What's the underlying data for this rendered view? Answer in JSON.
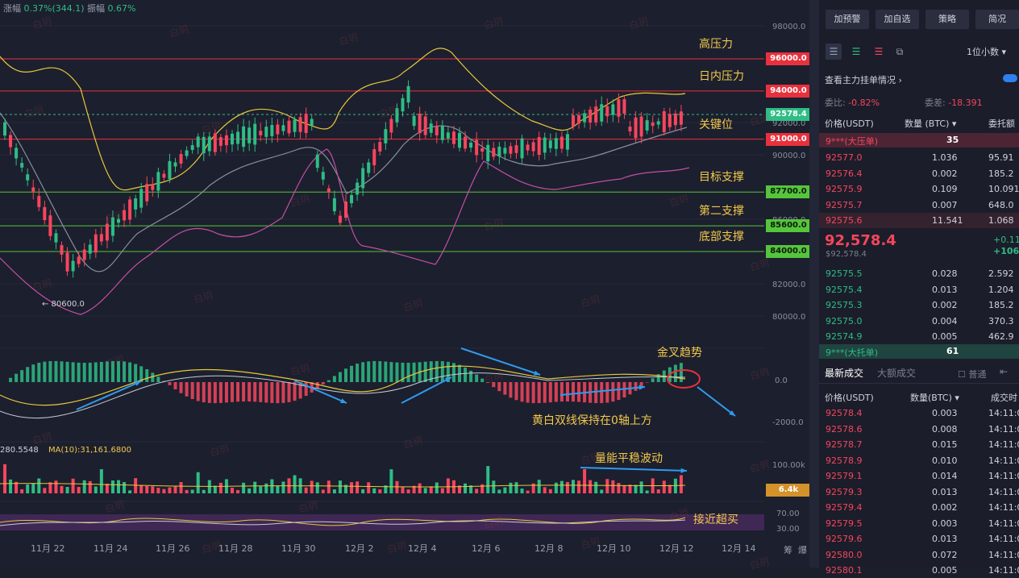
{
  "top_stats": {
    "change_label": "涨幅",
    "change_value": "0.37%(344.1)",
    "amp_label": "振幅",
    "amp_value": "0.67%"
  },
  "price_axis": [
    "98000.0",
    "92000.0",
    "90000.0",
    "86000.0",
    "82000.0",
    "80000.0"
  ],
  "levels": [
    {
      "price": 96000,
      "label": "96000.0",
      "note": "高压力",
      "color": "#e8313d"
    },
    {
      "price": 94000,
      "label": "94000.0",
      "note": "日内压力",
      "color": "#e8313d"
    },
    {
      "price": 91000,
      "label": "91000.0",
      "note": "关键位",
      "color": "#e8313d"
    },
    {
      "price": 87700,
      "label": "87700.0",
      "note": "目标支撑",
      "color": "#55c53b"
    },
    {
      "price": 85600,
      "label": "85600.0",
      "note": "第二支撑",
      "color": "#55c53b"
    },
    {
      "price": 84000,
      "label": "84000.0",
      "note": "底部支撑",
      "color": "#55c53b"
    }
  ],
  "current_price_tag": "92578.4",
  "low_marker": "← 80600.0",
  "macd": {
    "zero_label": "0.0",
    "neg_label": "-2000.0",
    "annot_golden": "金叉趋势",
    "annot_lines": "黄白双线保持在0轴上方"
  },
  "volume": {
    "ma_label": "MA(10):31,161.6800",
    "prefix_label": "280.5548",
    "axis_label": "100.00k",
    "current_tag": "6.4k",
    "annot": "量能平稳波动"
  },
  "rsi": {
    "axis_top": "70.00",
    "axis_bottom": "30.00",
    "annot": "接近超买"
  },
  "dates": [
    "11月 22",
    "11月 24",
    "11月 26",
    "11月 28",
    "11月 30",
    "12月 2",
    "12月 4",
    "12月 6",
    "12月 8",
    "12月 10",
    "12月 12",
    "12月 14"
  ],
  "bottom_right_labels": [
    "筹",
    "爆"
  ],
  "watermark": "白玥",
  "panel": {
    "buttons": [
      "加预警",
      "加自选",
      "策略",
      "简况"
    ],
    "decimals": "1位小数",
    "view_orders": "查看主力挂单情况",
    "ratio_label": "委比",
    "ratio_value": "-0.82%",
    "diff_label": "委差",
    "diff_value": "-18.391",
    "headers": {
      "price": "价格(USDT)",
      "qty": "数量 (BTC)",
      "total": "委托额"
    },
    "big_sell_banner": {
      "label": "9***(大压单)",
      "qty": "35"
    },
    "asks": [
      {
        "price": "92577.0",
        "qty": "1.036",
        "total": "95.91"
      },
      {
        "price": "92576.4",
        "qty": "0.002",
        "total": "185.2"
      },
      {
        "price": "92575.9",
        "qty": "0.109",
        "total": "10.091"
      },
      {
        "price": "92575.7",
        "qty": "0.007",
        "total": "648.0"
      },
      {
        "price": "92575.6",
        "qty": "11.541",
        "total": "1.068"
      }
    ],
    "mid_price": "92,578.4",
    "mid_usd": "$92,578.4",
    "mid_change": "+0.11",
    "mid_change2": "+106",
    "bids": [
      {
        "price": "92575.5",
        "qty": "0.028",
        "total": "2.592"
      },
      {
        "price": "92575.4",
        "qty": "0.013",
        "total": "1.204"
      },
      {
        "price": "92575.3",
        "qty": "0.002",
        "total": "185.2"
      },
      {
        "price": "92575.0",
        "qty": "0.004",
        "total": "370.3"
      },
      {
        "price": "92574.9",
        "qty": "0.005",
        "total": "462.9"
      }
    ],
    "big_buy_banner": {
      "label": "9***(大托单)",
      "qty": "61"
    },
    "trade_tabs": [
      "最新成交",
      "大额成交"
    ],
    "normal_label": "普通",
    "trade_headers": {
      "price": "价格(USDT)",
      "qty": "数量(BTC)",
      "time": "成交时"
    },
    "trades": [
      {
        "price": "92578.4",
        "qty": "0.003",
        "time": "14:11:0"
      },
      {
        "price": "92578.6",
        "qty": "0.008",
        "time": "14:11:0"
      },
      {
        "price": "92578.7",
        "qty": "0.015",
        "time": "14:11:0"
      },
      {
        "price": "92578.9",
        "qty": "0.010",
        "time": "14:11:0"
      },
      {
        "price": "92579.1",
        "qty": "0.014",
        "time": "14:11:0"
      },
      {
        "price": "92579.3",
        "qty": "0.013",
        "time": "14:11:0"
      },
      {
        "price": "92579.4",
        "qty": "0.002",
        "time": "14:11:0"
      },
      {
        "price": "92579.5",
        "qty": "0.003",
        "time": "14:11:0"
      },
      {
        "price": "92579.6",
        "qty": "0.013",
        "time": "14:11:0"
      },
      {
        "price": "92580.0",
        "qty": "0.072",
        "time": "14:11:0"
      },
      {
        "price": "92580.1",
        "qty": "0.005",
        "time": "14:11:0"
      }
    ]
  }
}
